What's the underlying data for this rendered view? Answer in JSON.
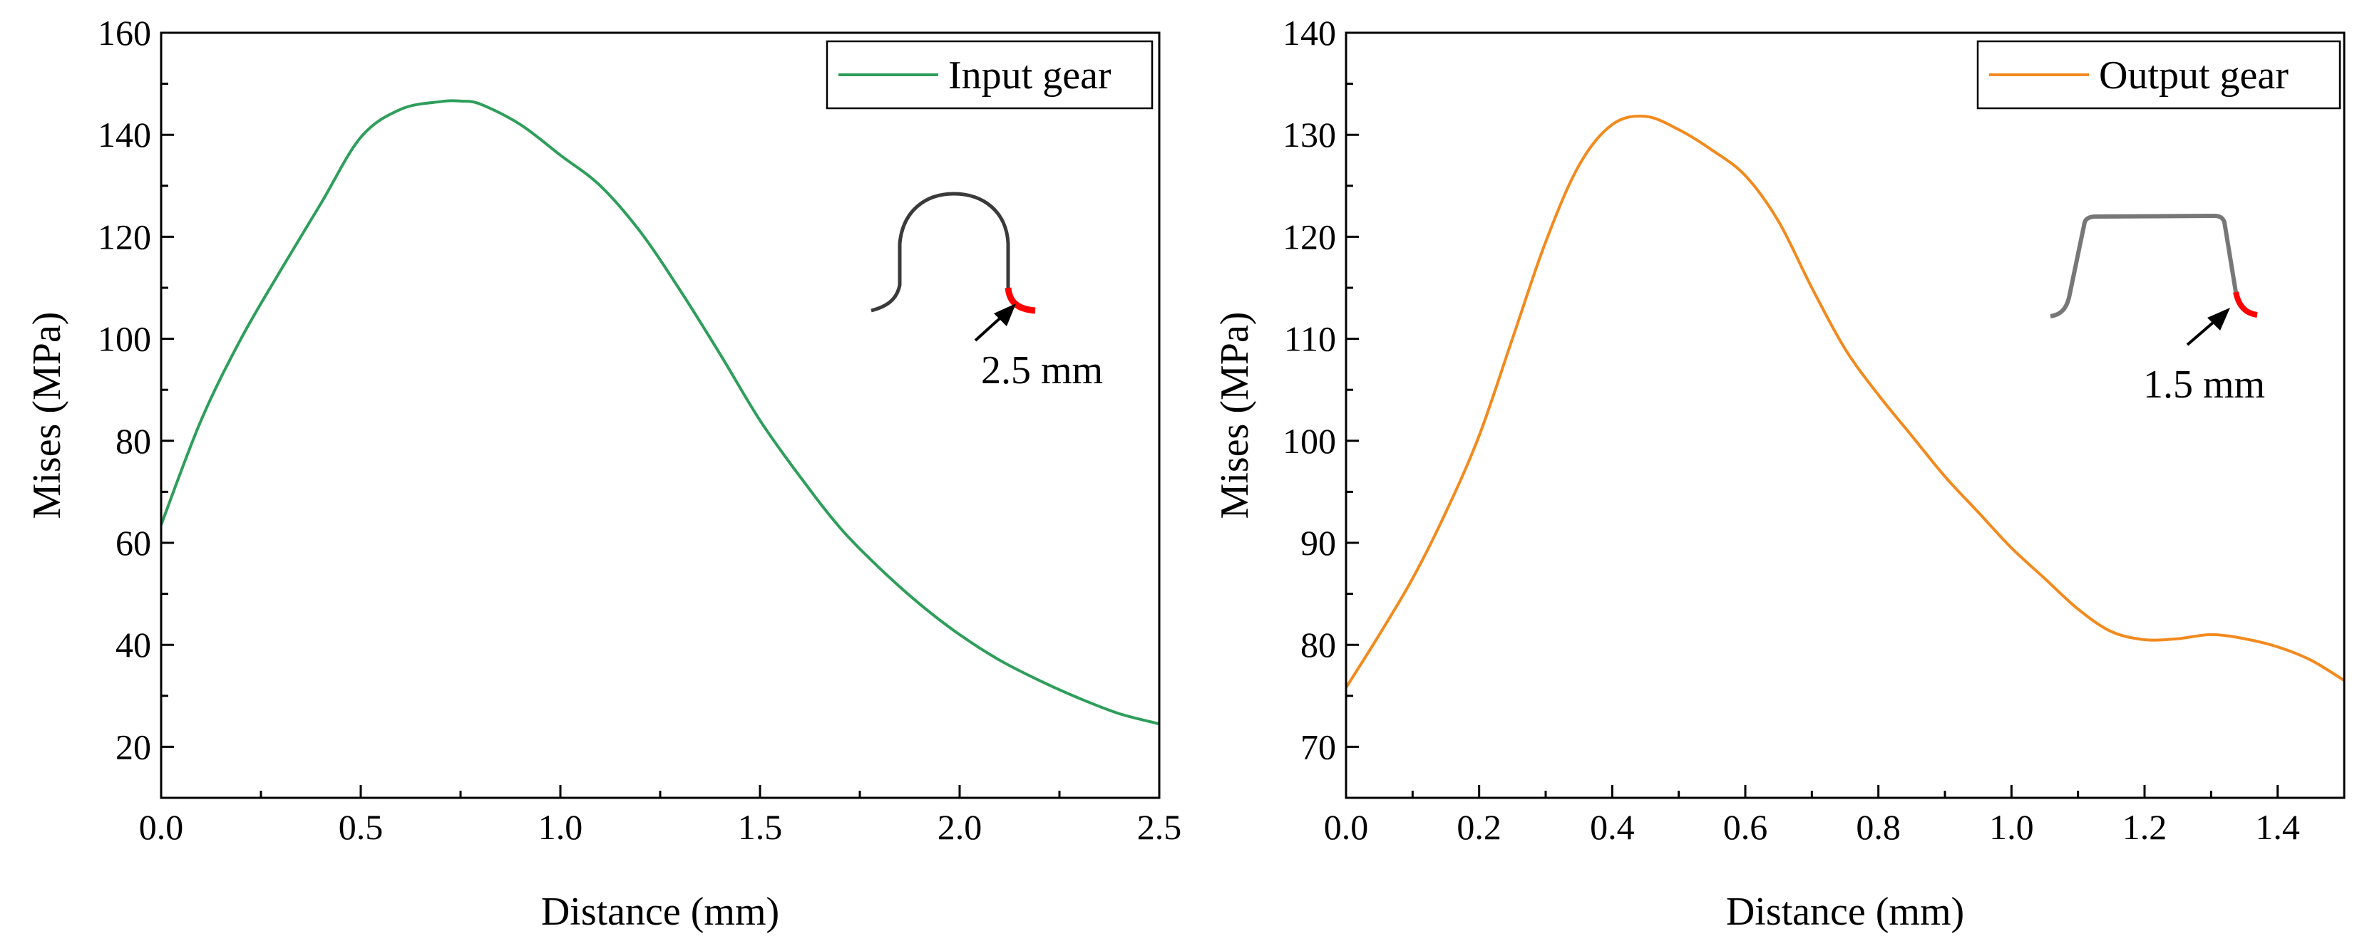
{
  "chart_data": [
    {
      "type": "line",
      "xlabel": "Distance  (mm)",
      "ylabel": "Mises  (MPa)",
      "xlim": [
        0,
        2.5
      ],
      "ylim": [
        10,
        160
      ],
      "xticks": [
        0.0,
        0.5,
        1.0,
        1.5,
        2.0,
        2.5
      ],
      "yticks": [
        20,
        40,
        60,
        80,
        100,
        120,
        140,
        160
      ],
      "xtick_labels": [
        "0.0",
        "0.5",
        "1.0",
        "1.5",
        "2.0",
        "2.5"
      ],
      "ytick_labels": [
        "20",
        "40",
        "60",
        "80",
        "100",
        "120",
        "140",
        "160"
      ],
      "grid": false,
      "legend_position": "top-right",
      "series": [
        {
          "name": "Input gear",
          "color": "#2e9e5b",
          "x": [
            0.0,
            0.1,
            0.2,
            0.3,
            0.4,
            0.5,
            0.6,
            0.7,
            0.75,
            0.8,
            0.9,
            1.0,
            1.1,
            1.2,
            1.3,
            1.4,
            1.5,
            1.6,
            1.7,
            1.8,
            1.9,
            2.0,
            2.1,
            2.2,
            2.3,
            2.4,
            2.5
          ],
          "y": [
            63.5,
            84,
            100,
            113.5,
            126.5,
            139.5,
            145,
            146.5,
            146.6,
            146,
            142,
            136,
            130,
            121,
            109.5,
            97,
            84,
            73,
            63,
            55,
            48,
            42,
            37,
            33,
            29.5,
            26.5,
            24.5
          ]
        }
      ],
      "annotation": {
        "label": "2.5 mm",
        "inset": "input-gear-tooth-profile"
      }
    },
    {
      "type": "line",
      "xlabel": "Distance  (mm)",
      "ylabel": "Mises  (MPa)",
      "xlim": [
        0,
        1.5
      ],
      "ylim": [
        65,
        140
      ],
      "xticks": [
        0.0,
        0.2,
        0.4,
        0.6,
        0.8,
        1.0,
        1.2,
        1.4
      ],
      "yticks": [
        70,
        80,
        90,
        100,
        110,
        120,
        130,
        140
      ],
      "xtick_labels": [
        "0.0",
        "0.2",
        "0.4",
        "0.6",
        "0.8",
        "1.0",
        "1.2",
        "1.4"
      ],
      "ytick_labels": [
        "70",
        "80",
        "90",
        "100",
        "110",
        "120",
        "130",
        "140"
      ],
      "grid": false,
      "legend_position": "top-right",
      "series": [
        {
          "name": "Output gear",
          "color": "#f28a1e",
          "x": [
            0.0,
            0.05,
            0.1,
            0.15,
            0.2,
            0.25,
            0.3,
            0.35,
            0.4,
            0.45,
            0.5,
            0.55,
            0.6,
            0.65,
            0.7,
            0.75,
            0.8,
            0.85,
            0.9,
            0.95,
            1.0,
            1.05,
            1.1,
            1.15,
            1.2,
            1.25,
            1.3,
            1.35,
            1.4,
            1.45,
            1.5
          ],
          "y": [
            75.8,
            81,
            86.5,
            93,
            100.5,
            110,
            119.5,
            127,
            131,
            131.8,
            130.5,
            128.5,
            126,
            121.5,
            115,
            109,
            104.5,
            100.5,
            96.5,
            93,
            89.5,
            86.5,
            83.5,
            81.3,
            80.5,
            80.6,
            81,
            80.6,
            79.8,
            78.5,
            76.5
          ]
        }
      ],
      "annotation": {
        "label": "1.5 mm",
        "inset": "output-gear-tooth-profile"
      }
    }
  ]
}
